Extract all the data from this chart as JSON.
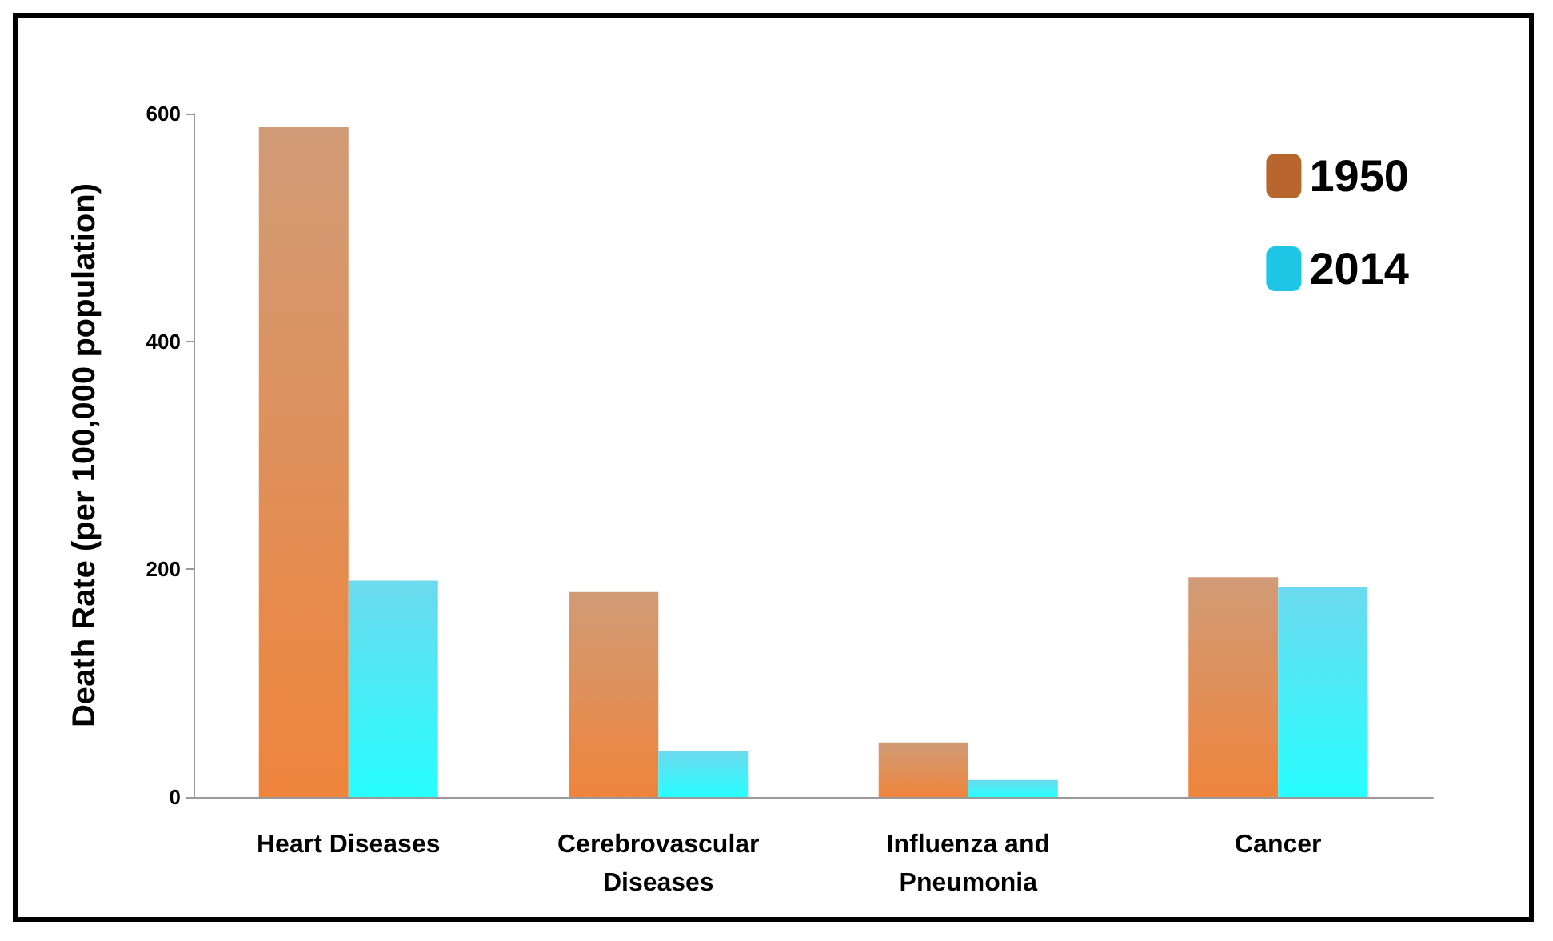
{
  "chart_data": {
    "type": "bar",
    "ylabel": "Death Rate (per 100,000 population)",
    "categories": [
      "Heart Diseases",
      "Cerebrovascular\nDiseases",
      "Influenza and\nPneumonia",
      "Cancer"
    ],
    "series": [
      {
        "name": "1950",
        "color": "#b8662e",
        "values": [
          588,
          180,
          48,
          193
        ]
      },
      {
        "name": "2014",
        "color": "#1ec6e6",
        "values": [
          190,
          40,
          15,
          184
        ]
      }
    ],
    "ylim": [
      0,
      600
    ],
    "yticks": [
      0,
      200,
      400,
      600
    ],
    "grid": false,
    "legend": "top right"
  }
}
